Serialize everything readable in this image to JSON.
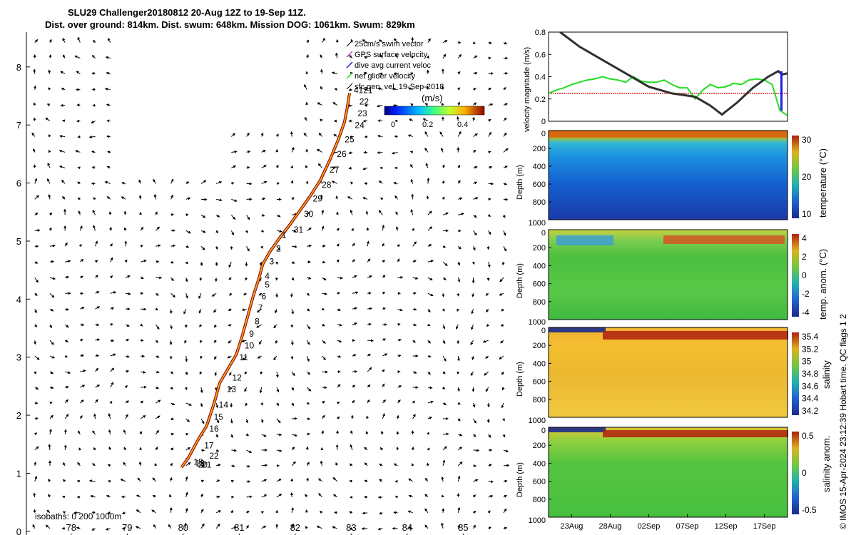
{
  "title": {
    "line1": "SLU29 Challenger20180812 20-Aug 12Z to 19-Sep 11Z.",
    "line2": "Dist. over ground: 814km. Dist. swum: 648km. Mission DOG: 1061km. Swum: 829km"
  },
  "footer": "© IMOS 15-Apr-2024 23:12:39 Hobart time. QC flags 1  2",
  "colors": {
    "track": "#f0a020",
    "track_outline": "#8b0000",
    "net_velocity": "#22dd22",
    "sfc_geo": "#dd2222",
    "swim_vector": "#000000",
    "gps_surface": "#c040c0",
    "dive_avg": "#2020dd"
  },
  "chart_data": [
    {
      "type": "scatter",
      "name": "map",
      "xlim": [
        77.2,
        85.9
      ],
      "ylim": [
        -0.1,
        8.6
      ],
      "x_ticks": [
        78,
        79,
        80,
        81,
        82,
        83,
        84,
        85
      ],
      "y_ticks": [
        0,
        1,
        2,
        3,
        4,
        5,
        6,
        7,
        8
      ],
      "legend": [
        "25cm/s swim vector",
        "GPS surface velocity",
        "dive avg current veloc",
        "net glider velocity",
        "sfc geo. vel. 19-Sep-2018"
      ],
      "colorbar": {
        "label": "(m/s)",
        "ticks": [
          "0",
          "0.2",
          "0.4"
        ],
        "range": [
          0,
          0.55
        ]
      },
      "isobaths_label": "isobaths: 0   200  1000m",
      "track": [
        [
          79.97,
          1.1
        ],
        [
          80.1,
          1.28
        ],
        [
          80.25,
          1.55
        ],
        [
          80.42,
          1.82
        ],
        [
          80.55,
          2.2
        ],
        [
          80.65,
          2.55
        ],
        [
          80.8,
          2.8
        ],
        [
          80.95,
          3.05
        ],
        [
          81.05,
          3.35
        ],
        [
          81.15,
          3.7
        ],
        [
          81.25,
          4.05
        ],
        [
          81.35,
          4.35
        ],
        [
          81.42,
          4.6
        ],
        [
          81.55,
          4.82
        ],
        [
          81.72,
          5.05
        ],
        [
          81.88,
          5.25
        ],
        [
          82.05,
          5.48
        ],
        [
          82.25,
          5.75
        ],
        [
          82.45,
          6.05
        ],
        [
          82.62,
          6.4
        ],
        [
          82.77,
          6.75
        ],
        [
          82.88,
          7.05
        ],
        [
          82.93,
          7.3
        ],
        [
          82.97,
          7.55
        ]
      ],
      "day_labels": [
        {
          "label": "1",
          "x": 81.8,
          "y": 5.05
        },
        {
          "label": "2",
          "x": 81.7,
          "y": 4.82
        },
        {
          "label": "3",
          "x": 81.58,
          "y": 4.6
        },
        {
          "label": "4",
          "x": 81.5,
          "y": 4.35
        },
        {
          "label": "5",
          "x": 81.5,
          "y": 4.2
        },
        {
          "label": "6",
          "x": 81.44,
          "y": 4.0
        },
        {
          "label": "7",
          "x": 81.38,
          "y": 3.8
        },
        {
          "label": "8",
          "x": 81.32,
          "y": 3.57
        },
        {
          "label": "9",
          "x": 81.22,
          "y": 3.35
        },
        {
          "label": "10",
          "x": 81.18,
          "y": 3.15
        },
        {
          "label": "11",
          "x": 81.08,
          "y": 2.95
        },
        {
          "label": "12",
          "x": 80.96,
          "y": 2.6
        },
        {
          "label": "13",
          "x": 80.86,
          "y": 2.4
        },
        {
          "label": "14",
          "x": 80.72,
          "y": 2.13
        },
        {
          "label": "15",
          "x": 80.63,
          "y": 1.92
        },
        {
          "label": "16",
          "x": 80.55,
          "y": 1.72
        },
        {
          "label": "17",
          "x": 80.46,
          "y": 1.43
        },
        {
          "label": "18",
          "x": 80.27,
          "y": 1.15
        },
        {
          "label": "19",
          "x": 80.3,
          "y": 1.12
        },
        {
          "label": "20",
          "x": 80.35,
          "y": 1.1
        },
        {
          "label": "21",
          "x": 80.42,
          "y": 1.1
        },
        {
          "label": "22",
          "x": 80.55,
          "y": 1.25
        },
        {
          "label": "41",
          "x": 83.13,
          "y": 7.55
        },
        {
          "label": "21",
          "x": 83.3,
          "y": 7.55
        },
        {
          "label": "22",
          "x": 83.23,
          "y": 7.35
        },
        {
          "label": "23",
          "x": 83.2,
          "y": 7.15
        },
        {
          "label": "24",
          "x": 83.15,
          "y": 6.95
        },
        {
          "label": "25",
          "x": 82.97,
          "y": 6.7
        },
        {
          "label": "26",
          "x": 82.83,
          "y": 6.45
        },
        {
          "label": "27",
          "x": 82.7,
          "y": 6.18
        },
        {
          "label": "28",
          "x": 82.56,
          "y": 5.92
        },
        {
          "label": "29",
          "x": 82.4,
          "y": 5.68
        },
        {
          "label": "30",
          "x": 82.24,
          "y": 5.42
        },
        {
          "label": "31",
          "x": 82.06,
          "y": 5.15
        }
      ]
    },
    {
      "type": "line",
      "name": "velocity",
      "ylabel": "velocity magnitude (m/s)",
      "ylim": [
        0,
        0.8
      ],
      "y_ticks": [
        0,
        0.2,
        0.4,
        0.6,
        0.8
      ],
      "xlim_days": [
        0,
        31
      ],
      "series": [
        {
          "x": [
            1.5,
            4,
            7,
            10,
            13,
            16,
            19,
            21,
            22.5,
            24.5,
            26.5,
            28.5,
            29.8,
            30.3,
            31
          ],
          "y": [
            0.8,
            0.67,
            0.55,
            0.43,
            0.31,
            0.25,
            0.22,
            0.14,
            0.06,
            0.17,
            0.3,
            0.4,
            0.45,
            0.42,
            0.43
          ]
        },
        {
          "x": [
            0,
            1,
            2,
            3,
            4,
            5,
            6,
            7,
            8,
            9,
            10,
            11,
            12,
            13,
            14,
            15,
            16,
            17,
            18,
            19,
            20,
            21,
            22,
            23,
            24,
            25,
            26,
            27,
            28,
            29,
            30,
            31
          ],
          "y": [
            0.25,
            0.28,
            0.3,
            0.33,
            0.35,
            0.37,
            0.38,
            0.4,
            0.38,
            0.37,
            0.35,
            0.4,
            0.36,
            0.35,
            0.35,
            0.37,
            0.33,
            0.3,
            0.3,
            0.2,
            0.28,
            0.33,
            0.3,
            0.31,
            0.34,
            0.33,
            0.37,
            0.38,
            0.37,
            0.33,
            0.1,
            0.05
          ]
        },
        {
          "x": [
            0,
            31
          ],
          "y": [
            0.25,
            0.25
          ]
        }
      ]
    },
    {
      "type": "heatmap",
      "name": "temperature",
      "ylabel": "Depth (m)",
      "colorbar_label": "temperature (°C)",
      "cbar_ticks": [
        "30",
        "20",
        "10"
      ],
      "depth_ticks": [
        "0",
        "200",
        "400",
        "600",
        "800"
      ],
      "bottom_label": "1000"
    },
    {
      "type": "heatmap",
      "name": "temp_anom",
      "ylabel": "Depth (m)",
      "colorbar_label": "temp. anom. (°C)",
      "cbar_ticks": [
        "4",
        "2",
        "0",
        "-2",
        "-4"
      ],
      "depth_ticks": [
        "0",
        "200",
        "400",
        "600",
        "800"
      ],
      "bottom_label": "1000"
    },
    {
      "type": "heatmap",
      "name": "salinity",
      "ylabel": "Depth (m)",
      "colorbar_label": "salinity",
      "cbar_ticks": [
        "35.4",
        "35.2",
        "35",
        "34.8",
        "34.6",
        "34.4",
        "34.2"
      ],
      "depth_ticks": [
        "0",
        "200",
        "400",
        "600",
        "800"
      ],
      "bottom_label": "1000"
    },
    {
      "type": "heatmap",
      "name": "salinity_anom",
      "ylabel": "Depth (m)",
      "colorbar_label": "salinity anom.",
      "cbar_ticks": [
        "0.5",
        "0",
        "-0.5"
      ],
      "depth_ticks": [
        "0",
        "200",
        "400",
        "600",
        "800"
      ],
      "bottom_label": "1000",
      "x_ticks": [
        "23Aug",
        "28Aug",
        "02Sep",
        "07Sep",
        "12Sep",
        "17Sep"
      ]
    }
  ]
}
